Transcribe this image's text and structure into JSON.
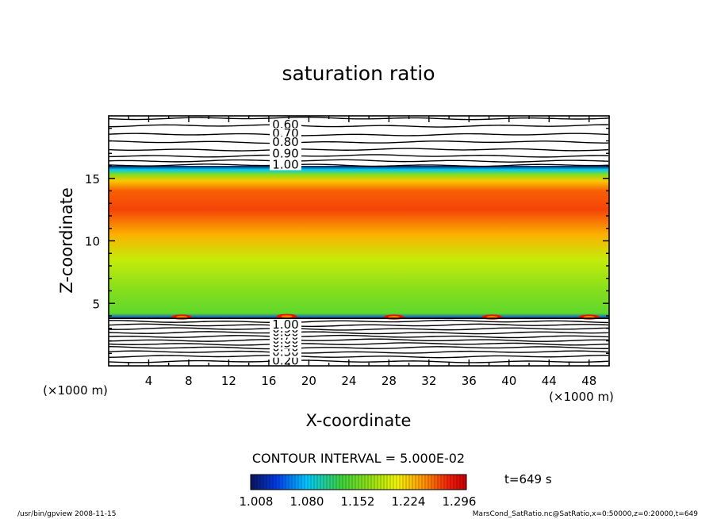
{
  "chart_data": {
    "type": "heatmap",
    "title": "saturation ratio",
    "xlabel": "X-coordinate",
    "ylabel": "Z-coordinate",
    "x_unit": "(×1000 m)",
    "z_unit": "(×1000 m)",
    "xlim": [
      0,
      50
    ],
    "ylim": [
      0,
      20
    ],
    "x_ticks": [
      4,
      8,
      12,
      16,
      20,
      24,
      28,
      32,
      36,
      40,
      44,
      48
    ],
    "y_ticks": [
      5,
      10,
      15
    ],
    "color_range": [
      1.008,
      1.35
    ],
    "filled_band_z": [
      3.8,
      16.0
    ],
    "color_profile": [
      {
        "z": 3.8,
        "value": 1.05
      },
      {
        "z": 4.2,
        "value": 1.17
      },
      {
        "z": 6.0,
        "value": 1.19
      },
      {
        "z": 8.5,
        "value": 1.22
      },
      {
        "z": 10.5,
        "value": 1.27
      },
      {
        "z": 12.5,
        "value": 1.31
      },
      {
        "z": 14.0,
        "value": 1.3
      },
      {
        "z": 14.8,
        "value": 1.26
      },
      {
        "z": 15.3,
        "value": 1.19
      },
      {
        "z": 15.7,
        "value": 1.1
      },
      {
        "z": 16.0,
        "value": 1.01
      }
    ],
    "hot_spots": [
      {
        "x": 7.3,
        "z": 3.9
      },
      {
        "x": 17.8,
        "z": 3.95
      },
      {
        "x": 28.5,
        "z": 3.9
      },
      {
        "x": 38.3,
        "z": 3.9
      },
      {
        "x": 48.0,
        "z": 3.9
      }
    ],
    "upper_contours": {
      "labels": [
        "0.60",
        "0.70",
        "0.80",
        "0.90",
        "1.00"
      ],
      "label_z": [
        19.3,
        18.6,
        17.9,
        17.0,
        16.1
      ],
      "line_z": [
        19.8,
        19.2,
        18.5,
        17.9,
        17.3,
        16.8,
        16.4,
        16.05
      ]
    },
    "lower_contours": {
      "labels": [
        "0.20",
        "0.30",
        "0.40",
        "0.50",
        "0.60",
        "0.70",
        "0.80",
        "0.90",
        "1.00"
      ],
      "label_z": [
        0.4,
        1.1,
        1.5,
        1.8,
        2.1,
        2.4,
        2.7,
        3.0,
        3.3
      ],
      "line_z": [
        0.35,
        0.75,
        1.1,
        1.45,
        1.75,
        2.05,
        2.35,
        2.65,
        2.95,
        3.25,
        3.55
      ]
    },
    "contour_interval": "CONTOUR INTERVAL = 5.000E-02",
    "colorbar": {
      "ticks": [
        "1.008",
        "1.080",
        "1.152",
        "1.224",
        "1.296"
      ]
    },
    "time_label": "t=649 s"
  },
  "footer": {
    "left": "/usr/bin/gpview   2008-11-15",
    "right": "MarsCond_SatRatio.nc@SatRatio,x=0:50000,z=0:20000,t=649"
  },
  "colors": {
    "axis": "#000000",
    "background": "#ffffff"
  }
}
